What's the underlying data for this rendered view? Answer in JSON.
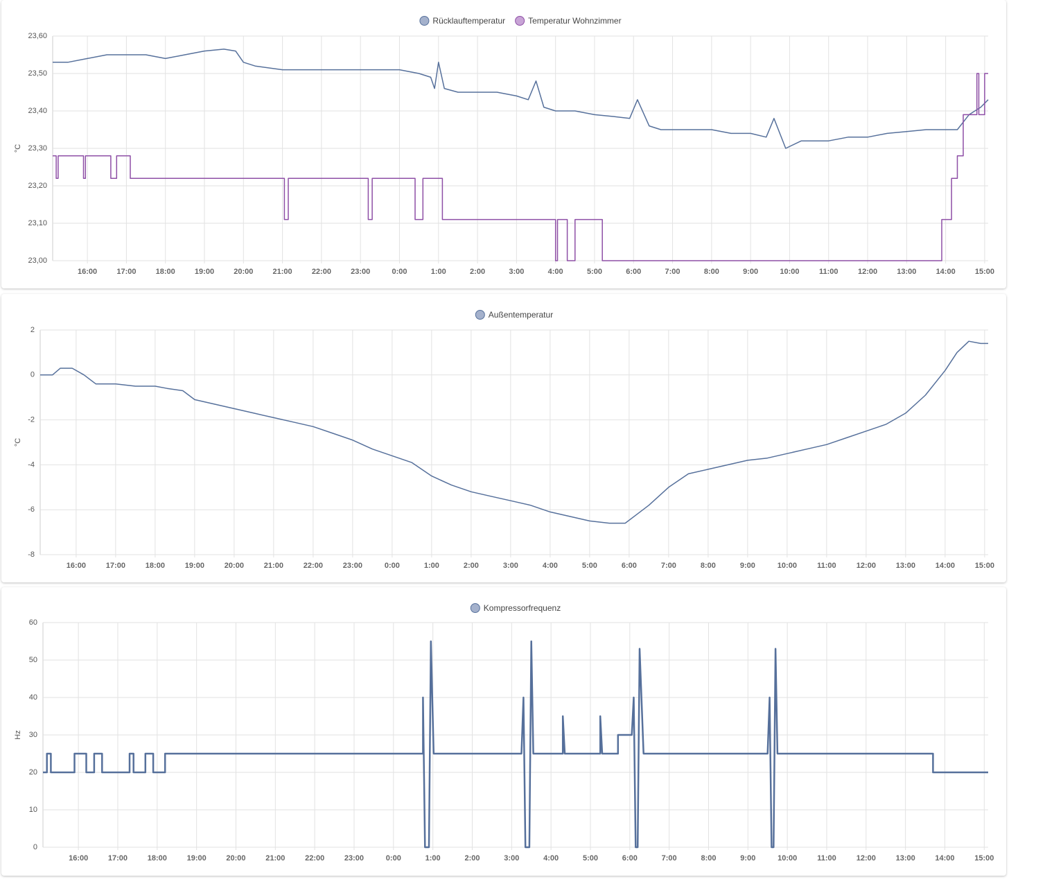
{
  "chart_data": [
    {
      "type": "line",
      "y_label": "°C",
      "grid": true,
      "xlim": [
        15.11,
        39.09
      ],
      "xticks": [
        {
          "value": 16,
          "label": "16:00"
        },
        {
          "value": 17,
          "label": "17:00"
        },
        {
          "value": 18,
          "label": "18:00"
        },
        {
          "value": 19,
          "label": "19:00"
        },
        {
          "value": 20,
          "label": "20:00"
        },
        {
          "value": 21,
          "label": "21:00"
        },
        {
          "value": 22,
          "label": "22:00"
        },
        {
          "value": 23,
          "label": "23:00"
        },
        {
          "value": 24,
          "label": "0:00"
        },
        {
          "value": 25,
          "label": "1:00"
        },
        {
          "value": 26,
          "label": "2:00"
        },
        {
          "value": 27,
          "label": "3:00"
        },
        {
          "value": 28,
          "label": "4:00"
        },
        {
          "value": 29,
          "label": "5:00"
        },
        {
          "value": 30,
          "label": "6:00"
        },
        {
          "value": 31,
          "label": "7:00"
        },
        {
          "value": 32,
          "label": "8:00"
        },
        {
          "value": 33,
          "label": "9:00"
        },
        {
          "value": 34,
          "label": "10:00"
        },
        {
          "value": 35,
          "label": "11:00"
        },
        {
          "value": 36,
          "label": "12:00"
        },
        {
          "value": 37,
          "label": "13:00"
        },
        {
          "value": 38,
          "label": "14:00"
        },
        {
          "value": 39,
          "label": "15:00"
        }
      ],
      "ylim": [
        23.0,
        23.6
      ],
      "yticks": [
        {
          "value": 23.0,
          "label": "23,00"
        },
        {
          "value": 23.1,
          "label": "23,10"
        },
        {
          "value": 23.2,
          "label": "23,20"
        },
        {
          "value": 23.3,
          "label": "23,30"
        },
        {
          "value": 23.4,
          "label": "23,40"
        },
        {
          "value": 23.5,
          "label": "23,50"
        },
        {
          "value": 23.6,
          "label": "23,60"
        }
      ],
      "series": [
        {
          "name": "Rücklauftemperatur",
          "color": "#56709b",
          "legend_color": "#a4b1cc",
          "x": [
            15.11,
            15.5,
            16,
            16.5,
            17,
            17.5,
            18,
            18.5,
            19,
            19.5,
            19.8,
            20,
            20.3,
            21,
            21.5,
            22,
            22.5,
            23,
            23.5,
            24,
            24.5,
            24.8,
            24.9,
            25.0,
            25.15,
            25.5,
            26,
            26.5,
            27,
            27.3,
            27.5,
            27.7,
            28,
            28.5,
            29,
            29.5,
            29.9,
            30.1,
            30.4,
            30.7,
            31,
            31.5,
            32,
            32.5,
            33,
            33.4,
            33.6,
            33.9,
            34.3,
            35,
            35.5,
            36,
            36.5,
            37,
            37.5,
            38,
            38.3,
            38.6,
            38.9,
            39.09
          ],
          "values": [
            23.53,
            23.53,
            23.54,
            23.55,
            23.55,
            23.55,
            23.54,
            23.55,
            23.56,
            23.565,
            23.56,
            23.53,
            23.52,
            23.51,
            23.51,
            23.51,
            23.51,
            23.51,
            23.51,
            23.51,
            23.5,
            23.49,
            23.46,
            23.53,
            23.46,
            23.45,
            23.45,
            23.45,
            23.44,
            23.43,
            23.48,
            23.41,
            23.4,
            23.4,
            23.39,
            23.385,
            23.38,
            23.43,
            23.36,
            23.35,
            23.35,
            23.35,
            23.35,
            23.34,
            23.34,
            23.33,
            23.38,
            23.3,
            23.32,
            23.32,
            23.33,
            23.33,
            23.34,
            23.345,
            23.35,
            23.35,
            23.35,
            23.39,
            23.41,
            23.43
          ]
        },
        {
          "name": "Temperatur Wohnzimmer",
          "color": "#8e4fa6",
          "legend_color": "#c8a4d6",
          "x": [
            15.11,
            15.2,
            15.2,
            15.25,
            15.25,
            15.9,
            15.9,
            15.95,
            15.95,
            16.6,
            16.6,
            16.75,
            16.75,
            17.1,
            17.1,
            21.05,
            21.05,
            21.15,
            21.15,
            23.2,
            23.2,
            23.3,
            23.3,
            24.4,
            24.4,
            24.6,
            24.6,
            25.1,
            25.1,
            28.0,
            28.0,
            28.05,
            28.05,
            28.3,
            28.3,
            28.5,
            28.5,
            29.2,
            29.2,
            37.9,
            37.9,
            38.15,
            38.15,
            38.3,
            38.3,
            38.45,
            38.45,
            38.8,
            38.8,
            38.85,
            38.85,
            39.0,
            39.0,
            39.09
          ],
          "values": [
            23.28,
            23.28,
            23.22,
            23.22,
            23.28,
            23.28,
            23.22,
            23.22,
            23.28,
            23.28,
            23.22,
            23.22,
            23.28,
            23.28,
            23.22,
            23.22,
            23.11,
            23.11,
            23.22,
            23.22,
            23.11,
            23.11,
            23.22,
            23.22,
            23.11,
            23.11,
            23.22,
            23.22,
            23.11,
            23.11,
            23.0,
            23.0,
            23.11,
            23.11,
            23.0,
            23.0,
            23.11,
            23.11,
            23.0,
            23.0,
            23.11,
            23.11,
            23.22,
            23.22,
            23.28,
            23.28,
            23.39,
            23.39,
            23.5,
            23.5,
            23.39,
            23.39,
            23.5,
            23.5
          ]
        }
      ]
    },
    {
      "type": "line",
      "y_label": "°C",
      "grid": true,
      "xlim": [
        15.09,
        39.09
      ],
      "xticks": [
        {
          "value": 16,
          "label": "16:00"
        },
        {
          "value": 17,
          "label": "17:00"
        },
        {
          "value": 18,
          "label": "18:00"
        },
        {
          "value": 19,
          "label": "19:00"
        },
        {
          "value": 20,
          "label": "20:00"
        },
        {
          "value": 21,
          "label": "21:00"
        },
        {
          "value": 22,
          "label": "22:00"
        },
        {
          "value": 23,
          "label": "23:00"
        },
        {
          "value": 24,
          "label": "0:00"
        },
        {
          "value": 25,
          "label": "1:00"
        },
        {
          "value": 26,
          "label": "2:00"
        },
        {
          "value": 27,
          "label": "3:00"
        },
        {
          "value": 28,
          "label": "4:00"
        },
        {
          "value": 29,
          "label": "5:00"
        },
        {
          "value": 30,
          "label": "6:00"
        },
        {
          "value": 31,
          "label": "7:00"
        },
        {
          "value": 32,
          "label": "8:00"
        },
        {
          "value": 33,
          "label": "9:00"
        },
        {
          "value": 34,
          "label": "10:00"
        },
        {
          "value": 35,
          "label": "11:00"
        },
        {
          "value": 36,
          "label": "12:00"
        },
        {
          "value": 37,
          "label": "13:00"
        },
        {
          "value": 38,
          "label": "14:00"
        },
        {
          "value": 39,
          "label": "15:00"
        }
      ],
      "ylim": [
        -8,
        2
      ],
      "yticks": [
        -8,
        -6,
        -4,
        -2,
        0,
        2
      ],
      "series": [
        {
          "name": "Außentemperatur",
          "color": "#56709b",
          "legend_color": "#a4b1cc",
          "x": [
            15.09,
            15.4,
            15.6,
            15.9,
            16.2,
            16.5,
            17,
            17.5,
            18,
            18.3,
            18.7,
            19,
            19.5,
            20,
            20.5,
            21,
            21.5,
            22,
            22.5,
            23,
            23.5,
            24,
            24.5,
            25,
            25.5,
            26,
            26.5,
            27,
            27.5,
            28,
            28.5,
            29,
            29.5,
            29.9,
            30.2,
            30.5,
            31,
            31.5,
            32,
            32.5,
            33,
            33.5,
            34,
            34.5,
            35,
            35.5,
            36,
            36.5,
            37,
            37.5,
            38,
            38.3,
            38.6,
            38.9,
            39.09
          ],
          "values": [
            0,
            0,
            0.3,
            0.3,
            0,
            -0.4,
            -0.4,
            -0.5,
            -0.5,
            -0.6,
            -0.7,
            -1.1,
            -1.3,
            -1.5,
            -1.7,
            -1.9,
            -2.1,
            -2.3,
            -2.6,
            -2.9,
            -3.3,
            -3.6,
            -3.9,
            -4.5,
            -4.9,
            -5.2,
            -5.4,
            -5.6,
            -5.8,
            -6.1,
            -6.3,
            -6.5,
            -6.6,
            -6.6,
            -6.2,
            -5.8,
            -5.0,
            -4.4,
            -4.2,
            -4.0,
            -3.8,
            -3.7,
            -3.5,
            -3.3,
            -3.1,
            -2.8,
            -2.5,
            -2.2,
            -1.7,
            -0.9,
            0.2,
            1.0,
            1.5,
            1.4,
            1.4
          ]
        }
      ]
    },
    {
      "type": "line",
      "y_label": "Hz",
      "grid": true,
      "xlim": [
        15.1,
        39.1
      ],
      "xticks": [
        {
          "value": 16,
          "label": "16:00"
        },
        {
          "value": 17,
          "label": "17:00"
        },
        {
          "value": 18,
          "label": "18:00"
        },
        {
          "value": 19,
          "label": "19:00"
        },
        {
          "value": 20,
          "label": "20:00"
        },
        {
          "value": 21,
          "label": "21:00"
        },
        {
          "value": 22,
          "label": "22:00"
        },
        {
          "value": 23,
          "label": "23:00"
        },
        {
          "value": 24,
          "label": "0:00"
        },
        {
          "value": 25,
          "label": "1:00"
        },
        {
          "value": 26,
          "label": "2:00"
        },
        {
          "value": 27,
          "label": "3:00"
        },
        {
          "value": 28,
          "label": "4:00"
        },
        {
          "value": 29,
          "label": "5:00"
        },
        {
          "value": 30,
          "label": "6:00"
        },
        {
          "value": 31,
          "label": "7:00"
        },
        {
          "value": 32,
          "label": "8:00"
        },
        {
          "value": 33,
          "label": "9:00"
        },
        {
          "value": 34,
          "label": "10:00"
        },
        {
          "value": 35,
          "label": "11:00"
        },
        {
          "value": 36,
          "label": "12:00"
        },
        {
          "value": 37,
          "label": "13:00"
        },
        {
          "value": 38,
          "label": "14:00"
        },
        {
          "value": 39,
          "label": "15:00"
        }
      ],
      "ylim": [
        0,
        60
      ],
      "yticks": [
        0,
        10,
        20,
        30,
        40,
        50,
        60
      ],
      "series": [
        {
          "name": "Kompressorfrequenz",
          "color": "#56709b",
          "legend_color": "#a4b1cc",
          "x": [
            15.1,
            15.2,
            15.2,
            15.3,
            15.3,
            15.9,
            15.9,
            16.2,
            16.2,
            16.4,
            16.4,
            16.6,
            16.6,
            17.3,
            17.3,
            17.4,
            17.4,
            17.7,
            17.7,
            17.9,
            17.9,
            18.2,
            18.2,
            24.75,
            24.75,
            24.8,
            24.9,
            24.95,
            25.02,
            27.25,
            27.3,
            27.35,
            27.45,
            27.5,
            27.55,
            28.3,
            28.3,
            28.35,
            29.25,
            29.25,
            29.3,
            29.7,
            29.7,
            30.05,
            30.1,
            30.15,
            30.2,
            30.25,
            30.35,
            33.5,
            33.55,
            33.6,
            33.65,
            33.7,
            33.75,
            37.7,
            37.7,
            39.1
          ],
          "values": [
            20,
            20,
            25,
            25,
            20,
            20,
            25,
            25,
            20,
            20,
            25,
            25,
            20,
            20,
            25,
            25,
            20,
            20,
            25,
            25,
            20,
            20,
            25,
            25,
            40,
            0,
            0,
            55,
            25,
            25,
            40,
            0,
            0,
            55,
            25,
            25,
            35,
            25,
            25,
            35,
            25,
            25,
            30,
            30,
            40,
            0,
            0,
            53,
            25,
            25,
            40,
            0,
            0,
            53,
            25,
            25,
            20,
            20
          ]
        }
      ]
    }
  ]
}
